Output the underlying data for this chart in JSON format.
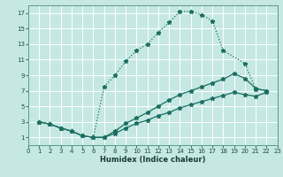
{
  "xlabel": "Humidex (Indice chaleur)",
  "bg_color": "#c5e8e3",
  "grid_color": "#ffffff",
  "line_color": "#1a6e62",
  "xlim": [
    0,
    23
  ],
  "ylim": [
    0,
    18
  ],
  "xticks": [
    0,
    1,
    2,
    3,
    4,
    5,
    6,
    7,
    8,
    9,
    10,
    11,
    12,
    13,
    14,
    15,
    16,
    17,
    18,
    19,
    20,
    21,
    22,
    23
  ],
  "yticks": [
    1,
    3,
    5,
    7,
    9,
    11,
    13,
    15,
    17
  ],
  "curve1_x": [
    1,
    2,
    3,
    4,
    5,
    6,
    7,
    8,
    9,
    10,
    11,
    12,
    13,
    14,
    15,
    16,
    17,
    18,
    20,
    21,
    22
  ],
  "curve1_y": [
    3,
    2.7,
    2.2,
    1.8,
    1.2,
    1.0,
    7.5,
    9.0,
    10.8,
    12.2,
    13.0,
    14.5,
    15.8,
    17.2,
    17.2,
    16.8,
    16.0,
    12.2,
    10.5,
    7.2,
    7.0
  ],
  "curve2_x": [
    1,
    2,
    3,
    4,
    5,
    6,
    7,
    8,
    9,
    10,
    11,
    12,
    13,
    14,
    15,
    16,
    17,
    18,
    19,
    20,
    21,
    22
  ],
  "curve2_y": [
    3,
    2.7,
    2.2,
    1.8,
    1.2,
    1.0,
    1.0,
    1.8,
    2.8,
    3.5,
    4.2,
    5.0,
    5.8,
    6.5,
    7.0,
    7.5,
    8.0,
    8.5,
    9.2,
    8.6,
    7.3,
    7.0
  ],
  "curve3_x": [
    1,
    2,
    3,
    4,
    5,
    6,
    7,
    8,
    9,
    10,
    11,
    12,
    13,
    14,
    15,
    16,
    17,
    18,
    19,
    20,
    21,
    22
  ],
  "curve3_y": [
    3,
    2.7,
    2.2,
    1.8,
    1.2,
    1.0,
    1.0,
    1.5,
    2.2,
    2.8,
    3.2,
    3.8,
    4.2,
    4.8,
    5.2,
    5.6,
    6.0,
    6.4,
    6.8,
    6.5,
    6.3,
    6.8
  ]
}
